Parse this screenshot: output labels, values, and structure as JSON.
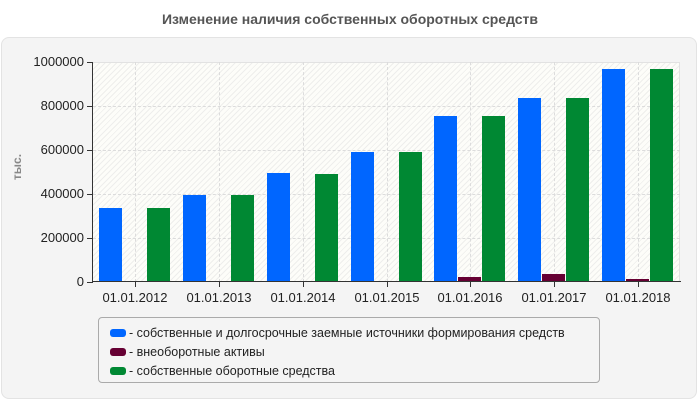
{
  "title": "Изменение наличия собственных оборотных средств",
  "chart_data": {
    "type": "bar",
    "title": "Изменение наличия собственных оборотных средств",
    "xlabel": "",
    "ylabel": "тыс.",
    "ylim": [
      0,
      1000000
    ],
    "yticks": [
      "0",
      "200000",
      "400000",
      "600000",
      "800000",
      "1000000"
    ],
    "grid": true,
    "legend_position": "bottom",
    "categories": [
      "01.01.2012",
      "01.01.2013",
      "01.01.2014",
      "01.01.2015",
      "01.01.2016",
      "01.01.2017",
      "01.01.2018"
    ],
    "series": [
      {
        "name": "- собственные и долгосрочные заемные источники формирования средств",
        "color": "#0066ff",
        "values": [
          336000,
          395000,
          495000,
          591000,
          755000,
          836000,
          968000
        ]
      },
      {
        "name": "- внеоборотные активы",
        "color": "#660033",
        "values": [
          5000,
          5000,
          5000,
          5000,
          23000,
          36000,
          14000
        ]
      },
      {
        "name": "- собственные оборотные средства",
        "color": "#008833",
        "values": [
          336000,
          395000,
          491000,
          591000,
          755000,
          836000,
          968000
        ]
      }
    ]
  }
}
